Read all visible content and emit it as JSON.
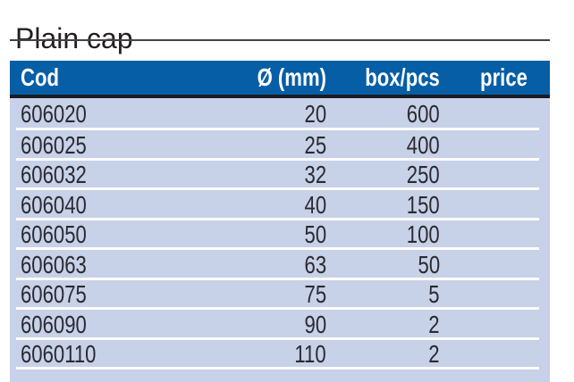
{
  "page": {
    "title": "Plain cap"
  },
  "table": {
    "columns": [
      {
        "key": "cod",
        "label": "Cod",
        "align": "left"
      },
      {
        "key": "diameter",
        "label": "Ø (mm)",
        "align": "right"
      },
      {
        "key": "box",
        "label": "box/pcs",
        "align": "right"
      },
      {
        "key": "price",
        "label": "price",
        "align": "right"
      }
    ],
    "rows": [
      {
        "cod": "606020",
        "diameter": "20",
        "box": "600",
        "price": ""
      },
      {
        "cod": "606025",
        "diameter": "25",
        "box": "400",
        "price": ""
      },
      {
        "cod": "606032",
        "diameter": "32",
        "box": "250",
        "price": ""
      },
      {
        "cod": "606040",
        "diameter": "40",
        "box": "150",
        "price": ""
      },
      {
        "cod": "606050",
        "diameter": "50",
        "box": "100",
        "price": ""
      },
      {
        "cod": "606063",
        "diameter": "63",
        "box": "50",
        "price": ""
      },
      {
        "cod": "606075",
        "diameter": "75",
        "box": "5",
        "price": ""
      },
      {
        "cod": "606090",
        "diameter": "90",
        "box": "2",
        "price": ""
      },
      {
        "cod": "6060110",
        "diameter": "110",
        "box": "2",
        "price": ""
      }
    ]
  },
  "colors": {
    "header_bg": "#065ea6",
    "header_text": "#ffffff",
    "row_bg": "#c7d1e8",
    "separator": "#fdfdfe",
    "body_text": "#2b2a30",
    "dark_border": "#1a1a23",
    "title_text": "#231f20",
    "title_rule": "#434244"
  }
}
